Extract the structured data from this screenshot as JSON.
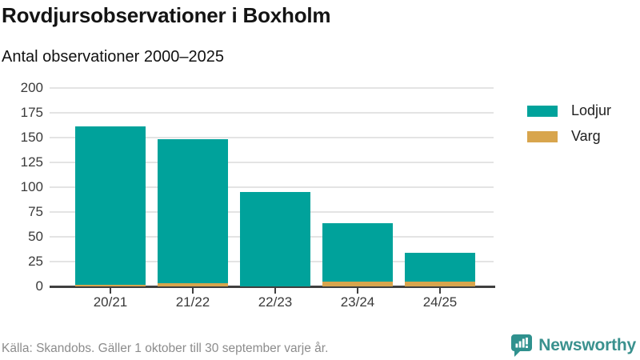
{
  "header": {
    "title": "Rovdjursobservationer i Boxholm",
    "subtitle": "Antal observationer 2000–2025"
  },
  "chart_data": {
    "type": "bar",
    "stacked": true,
    "title": "Rovdjursobservationer i Boxholm",
    "subtitle": "Antal observationer 2000–2025",
    "categories": [
      "20/21",
      "21/22",
      "22/23",
      "23/24",
      "24/25"
    ],
    "series": [
      {
        "name": "Lodjur",
        "color": "#00a29b",
        "values": [
          159,
          145,
          95,
          59,
          29
        ]
      },
      {
        "name": "Varg",
        "color": "#d8a54d",
        "values": [
          2,
          3,
          0,
          5,
          5
        ]
      }
    ],
    "totals": [
      161,
      148,
      95,
      64,
      34
    ],
    "xlabel": "",
    "ylabel": "",
    "ylim": [
      0,
      200
    ],
    "yticks": [
      0,
      25,
      50,
      75,
      100,
      125,
      150,
      175,
      200
    ],
    "grid": "horizontal",
    "legend_position": "right"
  },
  "footer": {
    "source": "Källa: Skandobs. Gäller 1 oktober till 30 september varje år.",
    "brand": "Newsworthy"
  }
}
